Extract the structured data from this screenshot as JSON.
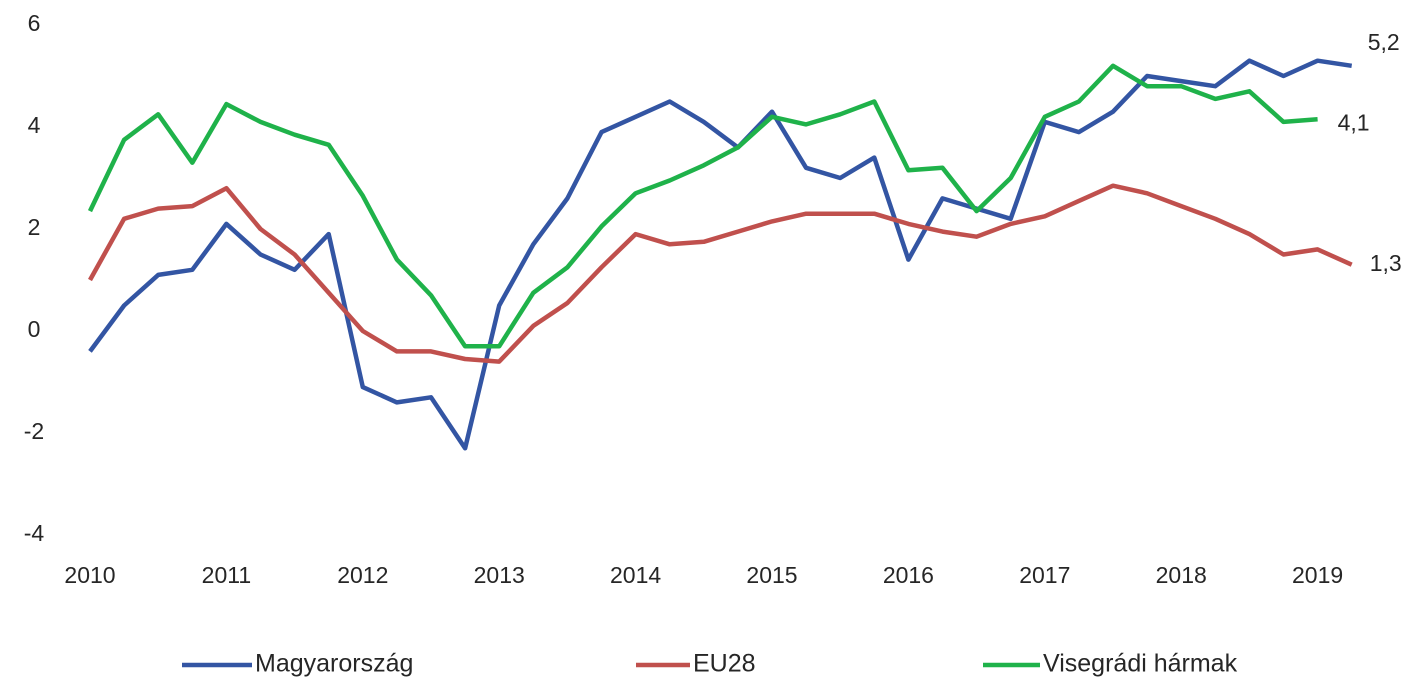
{
  "chart_data": {
    "type": "line",
    "categories": [
      "2010",
      null,
      null,
      null,
      "2011",
      null,
      null,
      null,
      "2012",
      null,
      null,
      null,
      "2013",
      null,
      null,
      null,
      "2014",
      null,
      null,
      null,
      "2015",
      null,
      null,
      null,
      "2016",
      null,
      null,
      null,
      "2017",
      null,
      null,
      null,
      "2018",
      null,
      null,
      null,
      "2019",
      null
    ],
    "ylim": [
      -4,
      6
    ],
    "yticks": [
      -4,
      -2,
      0,
      2,
      4,
      6
    ],
    "grid": false,
    "legend": "bottom",
    "series": [
      {
        "name": "Magyarország",
        "color": "#3355a3",
        "values": [
          -0.4,
          0.5,
          1.1,
          1.2,
          2.1,
          1.5,
          1.2,
          1.9,
          -1.1,
          -1.4,
          -1.3,
          -2.3,
          0.5,
          1.7,
          2.6,
          3.9,
          4.2,
          4.5,
          4.1,
          3.6,
          4.3,
          3.2,
          3.0,
          3.4,
          1.4,
          2.6,
          2.4,
          2.2,
          4.1,
          3.9,
          4.3,
          5.0,
          4.9,
          4.8,
          5.3,
          5.0,
          5.3,
          5.2
        ],
        "value_labels": [
          null,
          null,
          null,
          null,
          null,
          null,
          null,
          null,
          null,
          null,
          null,
          null,
          null,
          null,
          null,
          null,
          null,
          null,
          null,
          null,
          null,
          null,
          null,
          null,
          null,
          null,
          null,
          null,
          null,
          null,
          null,
          null,
          null,
          null,
          null,
          null,
          null,
          "5,2"
        ]
      },
      {
        "name": "EU28",
        "color": "#c0504d",
        "values": [
          1.0,
          2.2,
          2.4,
          2.45,
          2.8,
          2.0,
          1.5,
          0.75,
          0.0,
          -0.4,
          -0.4,
          -0.55,
          -0.6,
          0.1,
          0.55,
          1.25,
          1.9,
          1.7,
          1.75,
          1.95,
          2.15,
          2.3,
          2.3,
          2.3,
          2.1,
          1.95,
          1.85,
          2.1,
          2.25,
          2.55,
          2.85,
          2.7,
          2.45,
          2.2,
          1.9,
          1.5,
          1.6,
          1.3
        ],
        "value_labels": [
          null,
          null,
          null,
          null,
          null,
          null,
          null,
          null,
          null,
          null,
          null,
          null,
          null,
          null,
          null,
          null,
          null,
          null,
          null,
          null,
          null,
          null,
          null,
          null,
          null,
          null,
          null,
          null,
          null,
          null,
          null,
          null,
          null,
          null,
          null,
          null,
          null,
          "1,3"
        ]
      },
      {
        "name": "Visegrádi hármak",
        "color": "#1fb24a",
        "values": [
          2.35,
          3.75,
          4.25,
          3.3,
          4.45,
          4.1,
          3.85,
          3.65,
          2.65,
          1.4,
          0.7,
          -0.3,
          -0.3,
          0.75,
          1.25,
          2.05,
          2.7,
          2.95,
          3.25,
          3.6,
          4.2,
          4.05,
          4.25,
          4.5,
          3.15,
          3.2,
          2.35,
          3.0,
          4.2,
          4.5,
          5.2,
          4.8,
          4.8,
          4.55,
          4.7,
          4.1,
          4.15,
          null
        ],
        "value_labels": [
          null,
          null,
          null,
          null,
          null,
          null,
          null,
          null,
          null,
          null,
          null,
          null,
          null,
          null,
          null,
          null,
          null,
          null,
          null,
          null,
          null,
          null,
          null,
          null,
          null,
          null,
          null,
          null,
          null,
          null,
          null,
          null,
          null,
          null,
          null,
          null,
          "4,1",
          null
        ]
      }
    ]
  }
}
